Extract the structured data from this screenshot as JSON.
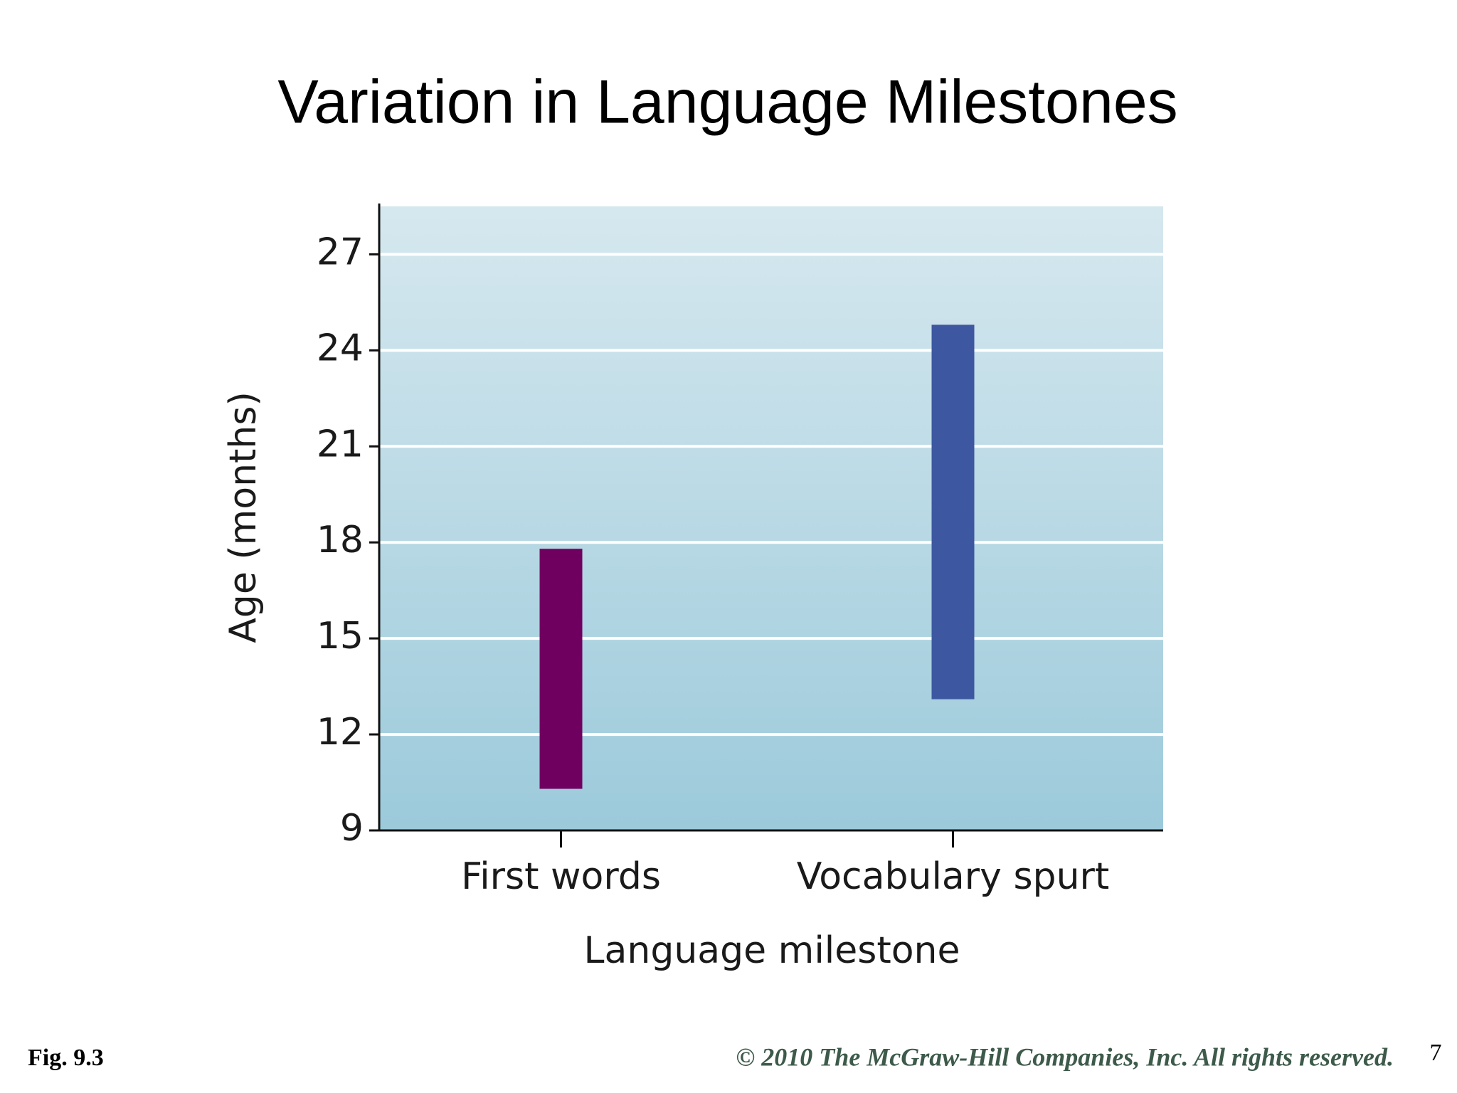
{
  "chart_data": {
    "type": "range",
    "title": "Variation in Language Milestones",
    "categories": [
      "First words",
      "Vocabulary spurt"
    ],
    "low": [
      10.3,
      13.1
    ],
    "high": [
      17.8,
      24.8
    ],
    "colors": [
      "#700060",
      "#3d58a0"
    ],
    "xlabel": "Language milestone",
    "ylabel": "Age (months)",
    "ylim": [
      9,
      28.5
    ],
    "yticks": [
      9,
      12,
      15,
      18,
      21,
      24,
      27
    ],
    "grid": true
  },
  "footer": {
    "figure": "Fig. 9.3",
    "copyright": "© 2010 The McGraw-Hill Companies, Inc. All rights reserved.",
    "page": "7"
  }
}
